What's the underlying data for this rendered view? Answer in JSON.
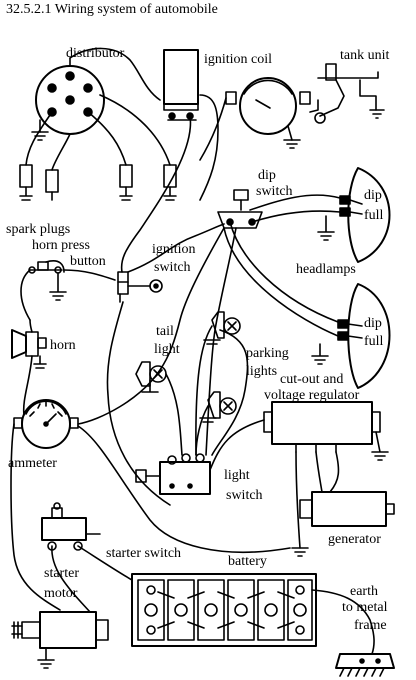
{
  "title": "32.5.2.1 Wiring system of automobile",
  "labels": {
    "distributor": "distributor",
    "ignition_coil": "ignition coil",
    "tank_unit": "tank unit",
    "dip_switch_1": "dip",
    "dip_switch_2": "switch",
    "dip_upper": "dip",
    "full_upper": "full",
    "spark_plugs": "spark plugs",
    "horn_press_1": "horn press",
    "horn_press_2": "button",
    "ignition_switch_1": "ignition",
    "ignition_switch_2": "switch",
    "headlamps": "headlamps",
    "horn": "horn",
    "tail_light_1": "tail",
    "tail_light_2": "light",
    "dip_lower": "dip",
    "full_lower": "full",
    "parking_lights_1": "parking",
    "parking_lights_2": "lights",
    "cutout_1": "cut-out and",
    "cutout_2": "voltage regulator",
    "ammeter": "ammeter",
    "light_switch_1": "light",
    "light_switch_2": "switch",
    "generator": "generator",
    "starter_switch": "starter switch",
    "battery": "battery",
    "starter_motor_1": "starter",
    "starter_motor_2": "motor",
    "earth_1": "earth",
    "earth_2": "to metal",
    "earth_3": "frame"
  }
}
